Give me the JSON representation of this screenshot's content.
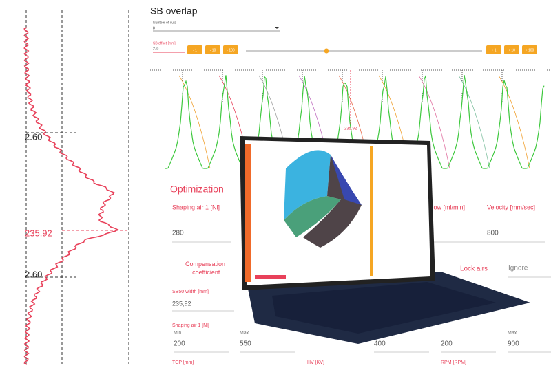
{
  "left_plot": {
    "labels": [
      "2.60",
      "235.92",
      "2.60"
    ]
  },
  "sb_overlap": {
    "title": "SB overlap",
    "cuts_label": "Number of cuts",
    "cuts_value": "8",
    "offset_label": "SB offset [mm]",
    "offset_value": "270",
    "buttons_left": [
      "- 1",
      "- 10",
      "- 100"
    ],
    "buttons_right": [
      "+ 1",
      "+ 10",
      "+ 100"
    ],
    "center_label": "235.92"
  },
  "optimization": {
    "title": "Optimization",
    "row1": [
      {
        "label": "Shaping air 1 [Nl]",
        "value": "280"
      },
      {
        "label": "flow [ml/min]",
        "value": ""
      },
      {
        "label": "Velocity [mm/sec]",
        "value": "800"
      }
    ],
    "compensation": "Compensation coefficient",
    "lock_airs": "Lock airs",
    "ignore": "Ignore",
    "sb50_label": "SB50 width [mm]",
    "sb50_value": "235,92",
    "shaping_label": "Shaping air 1 [Nl]",
    "min": "Min",
    "max": "Max",
    "values": [
      "200",
      "550",
      "400",
      "200",
      "900"
    ],
    "bottom_labels": [
      "TCP [mm]",
      "HV [KV]",
      "RPM [RPM]"
    ]
  }
}
